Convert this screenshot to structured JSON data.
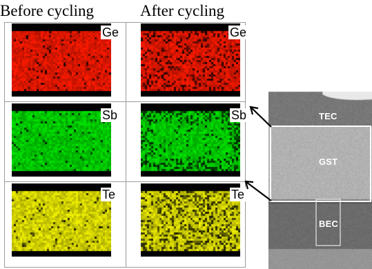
{
  "columns": {
    "before": "Before cycling",
    "after": "After cycling"
  },
  "elements": [
    {
      "key": "ge",
      "label": "Ge",
      "color": "#ff1a00"
    },
    {
      "key": "sb",
      "label": "Sb",
      "color": "#00e600"
    },
    {
      "key": "te",
      "label": "Te",
      "color": "#f2f200"
    }
  ],
  "tem": {
    "top_label": "TEC",
    "middle_label": "GST",
    "bottom_label": "BEC"
  },
  "colors": {
    "black_band": "#000000",
    "tem_box": "#ffffff",
    "arrow": "#000000"
  }
}
